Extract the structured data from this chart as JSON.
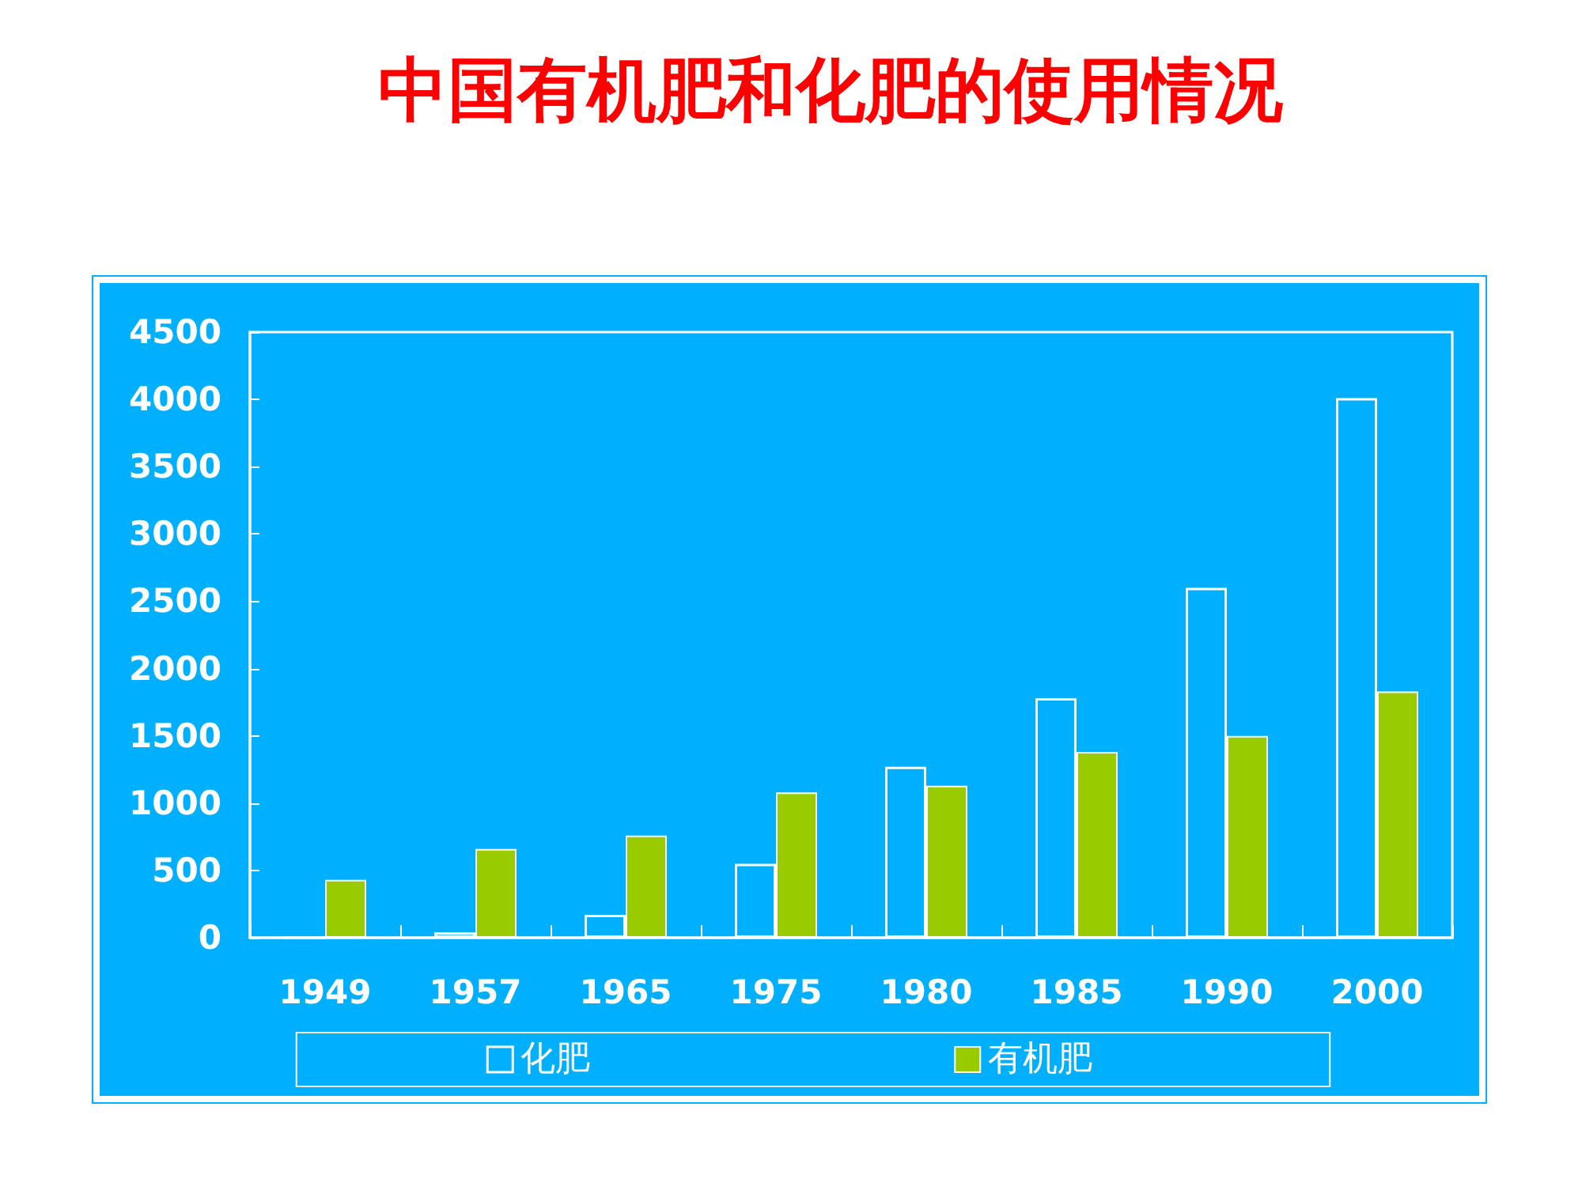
{
  "chart_data": {
    "type": "bar",
    "title": "中国有机肥和化肥的使用情况",
    "categories": [
      "1949",
      "1957",
      "1965",
      "1975",
      "1980",
      "1985",
      "1990",
      "2000"
    ],
    "series": [
      {
        "name": "化肥",
        "color": "#ffffff",
        "values": [
          0,
          40,
          170,
          550,
          1270,
          1780,
          2600,
          4010
        ]
      },
      {
        "name": "有机肥",
        "color": "#99cc00",
        "values": [
          430,
          660,
          760,
          1080,
          1130,
          1380,
          1500,
          1830
        ]
      }
    ],
    "ylim": [
      0,
      4500
    ],
    "yticks": [
      0,
      500,
      1000,
      1500,
      2000,
      2500,
      3000,
      3500,
      4000,
      4500
    ],
    "grid": false,
    "legend": "bottom"
  }
}
